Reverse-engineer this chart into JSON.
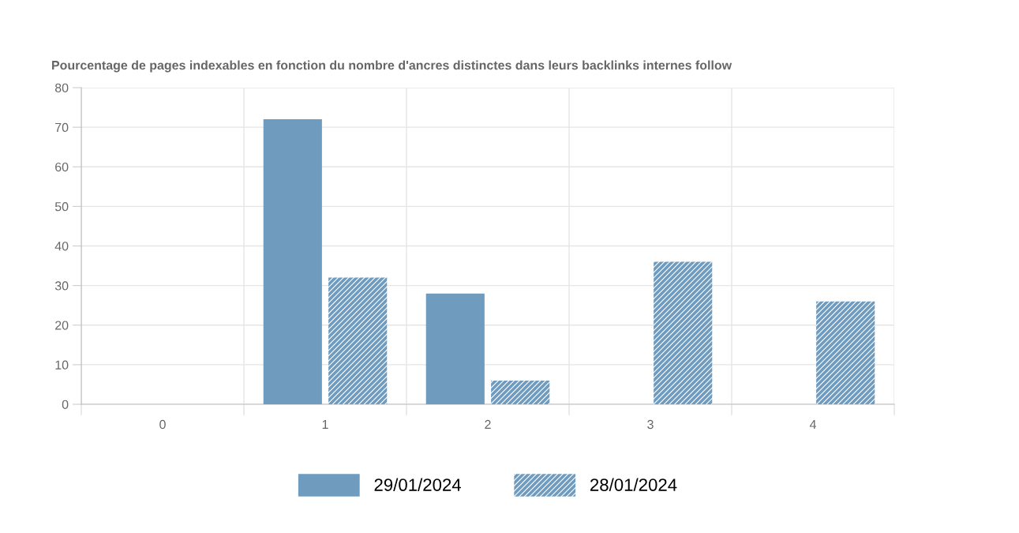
{
  "chart_data": {
    "type": "bar",
    "title": "Pourcentage de pages indexables en fonction du nombre d'ancres distinctes dans leurs backlinks internes follow",
    "categories": [
      "0",
      "1",
      "2",
      "3",
      "4"
    ],
    "series": [
      {
        "name": "29/01/2024",
        "color": "#6f9bbf",
        "values": [
          0,
          72,
          28,
          0,
          0
        ]
      },
      {
        "name": "28/01/2024",
        "color": "#6f9bbf",
        "values": [
          0,
          32,
          6,
          36,
          26
        ]
      }
    ],
    "ylim": [
      0,
      80
    ],
    "yticks": [
      0,
      10,
      20,
      30,
      40,
      50,
      60,
      70,
      80
    ],
    "grid": true,
    "legend": "bottom"
  }
}
